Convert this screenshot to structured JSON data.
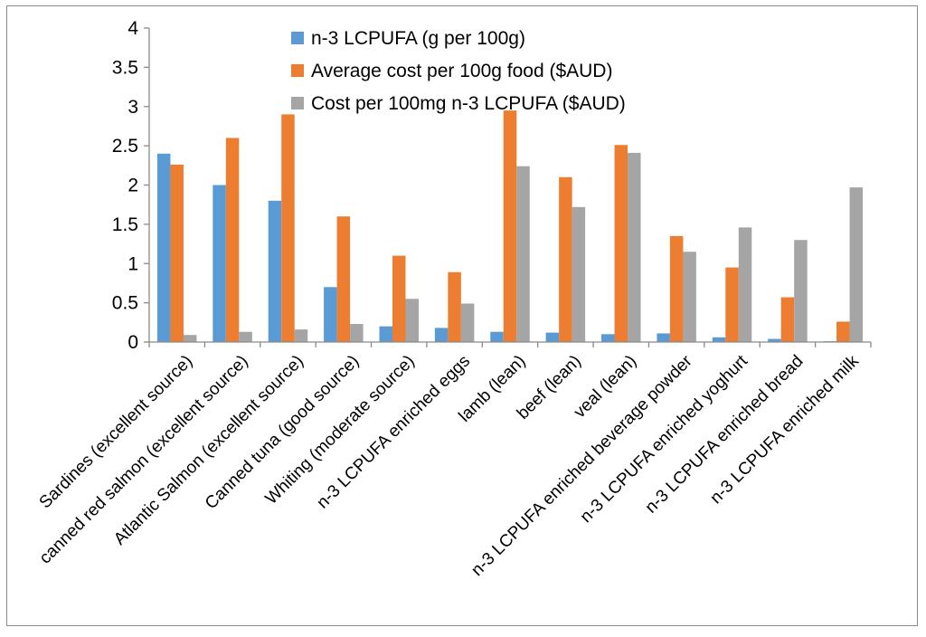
{
  "chart_data": {
    "type": "bar",
    "title": "",
    "xlabel": "",
    "ylabel": "",
    "ylim": [
      0,
      4
    ],
    "yticks": [
      "0",
      "0.5",
      "1",
      "1.5",
      "2",
      "2.5",
      "3",
      "3.5",
      "4"
    ],
    "grid": false,
    "legend_position": "top",
    "categories": [
      "Sardines (excellent source)",
      "canned red salmon (excellent source)",
      "Atlantic Salmon (excellent source)",
      "Canned tuna (good source)",
      "Whiting (moderate source)",
      "n-3 LCPUFA enriched eggs",
      "lamb (lean)",
      "beef (lean)",
      "veal (lean)",
      "n-3 LCPUFA enriched beverage powder",
      "n-3 LCPUFA enriched yoghurt",
      "n-3 LCPUFA enriched bread",
      "n-3 LCPUFA enriched milk"
    ],
    "series": [
      {
        "name": "n-3 LCPUFA (g per 100g)",
        "color": "#5b9bd5",
        "values": [
          2.4,
          2.0,
          1.8,
          0.7,
          0.2,
          0.18,
          0.13,
          0.12,
          0.1,
          0.11,
          0.06,
          0.04,
          0.01
        ]
      },
      {
        "name": "Average cost per 100g food ($AUD)",
        "color": "#ed7d31",
        "values": [
          2.26,
          2.6,
          2.9,
          1.6,
          1.1,
          0.89,
          2.95,
          2.1,
          2.51,
          1.35,
          0.95,
          0.57,
          0.26
        ]
      },
      {
        "name": "Cost per 100mg n-3 LCPUFA ($AUD)",
        "color": "#a5a5a5",
        "values": [
          0.09,
          0.13,
          0.16,
          0.23,
          0.55,
          0.49,
          2.24,
          1.72,
          2.41,
          1.15,
          1.46,
          1.3,
          1.97
        ]
      }
    ]
  }
}
